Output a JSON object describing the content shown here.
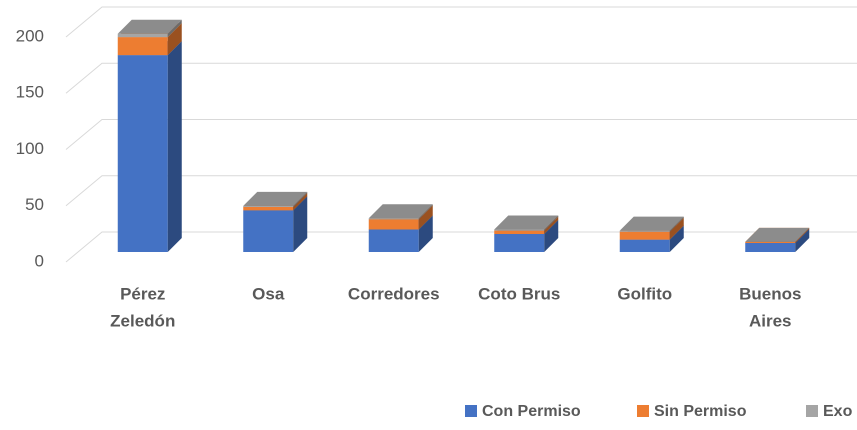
{
  "chart_data": {
    "type": "bar3d_stacked",
    "categories": [
      [
        "Pérez",
        "Zeledón"
      ],
      [
        "Osa"
      ],
      [
        "Corredores"
      ],
      [
        "Coto Brus"
      ],
      [
        "Golfito"
      ],
      [
        "Buenos",
        "Aires"
      ]
    ],
    "series": [
      {
        "name": "Con Permiso",
        "color": "#4472c4",
        "values": [
          175,
          37,
          20,
          16,
          11,
          8
        ]
      },
      {
        "name": "Sin Permiso",
        "color": "#ed7d31",
        "values": [
          16,
          3,
          9,
          3,
          7,
          1
        ]
      },
      {
        "name": "Exo",
        "color": "#a5a5a5",
        "values": [
          3,
          1,
          1,
          1,
          1,
          0
        ]
      }
    ],
    "ylim": [
      0,
      200
    ],
    "yticks": [
      0,
      50,
      100,
      150,
      200
    ],
    "grid": true
  }
}
